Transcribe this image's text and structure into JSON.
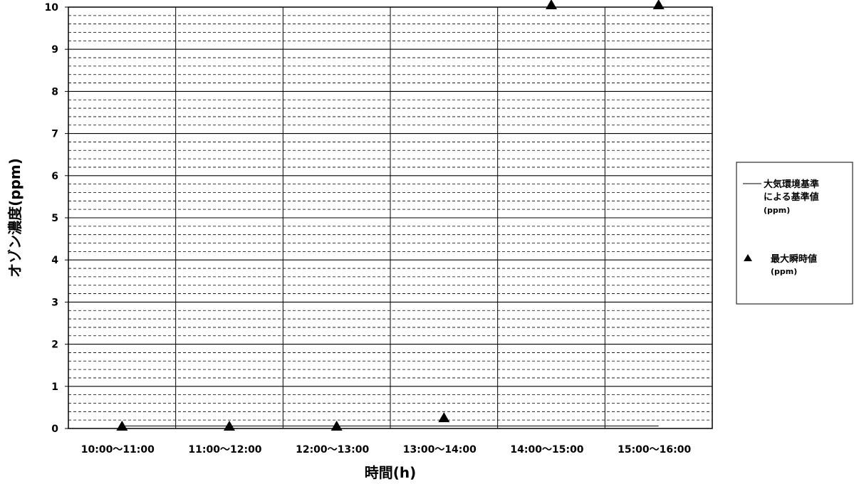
{
  "chart_data": {
    "type": "scatter",
    "categories": [
      "10:00～11:00",
      "11:00～12:00",
      "12:00～13:00",
      "13:00～14:00",
      "14:00～15:00",
      "15:00～16:00"
    ],
    "series": [
      {
        "name": "大気環境基準による基準値(ppm)",
        "name_lines": [
          "大気環境基準",
          "による基準値",
          "(ppm)"
        ],
        "kind": "line",
        "color": "#000000",
        "values": [
          0.06,
          0.06,
          0.06,
          0.06,
          0.06,
          0.06
        ]
      },
      {
        "name": "最大瞬時値(ppm)",
        "name_lines": [
          "最大瞬時値",
          "(ppm)"
        ],
        "kind": "marker",
        "marker": "triangle",
        "color": "#000000",
        "values": [
          0,
          0,
          0,
          0.2,
          10,
          10
        ]
      }
    ],
    "xlabel": "時間(h)",
    "ylabel": "オゾン濃度(ppm)",
    "ylim": [
      0,
      10
    ],
    "yticks": [
      "0",
      "1",
      "2",
      "3",
      "4",
      "5",
      "6",
      "7",
      "8",
      "9",
      "10"
    ],
    "grid": "major solid, minor dashed",
    "legend_position": "right"
  }
}
